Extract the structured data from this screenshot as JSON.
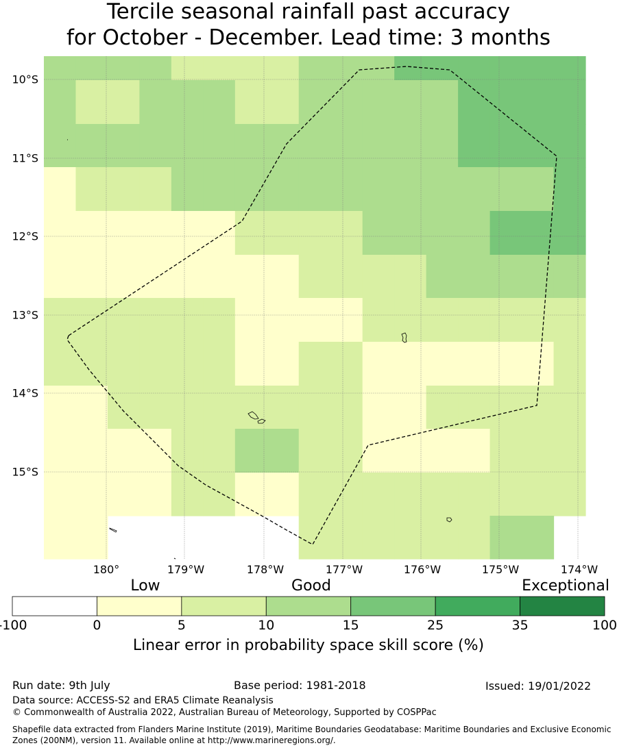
{
  "title": {
    "line1": "Tercile seasonal rainfall past accuracy",
    "line2": "for October - December. Lead time: 3 months"
  },
  "map": {
    "lat_labels": [
      "10°S",
      "11°S",
      "12°S",
      "13°S",
      "14°S",
      "15°S"
    ],
    "lon_labels": [
      "180°",
      "179°W",
      "178°W",
      "177°W",
      "176°W",
      "175°W",
      "174°W"
    ],
    "legend_categories": [
      "Low",
      "Good",
      "Exceptional"
    ],
    "colorbar_ticks": [
      "-100",
      "0",
      "5",
      "10",
      "15",
      "25",
      "35",
      "100"
    ],
    "colorbar_colors": [
      "#ffffff",
      "#ffffcc",
      "#d9f0a3",
      "#addd8e",
      "#78c679",
      "#41ab5d",
      "#238443"
    ],
    "colorbar_title": "Linear error in probability space skill score (%)",
    "grid_class_rows": [
      [
        2,
        2,
        2,
        2,
        1,
        1,
        1,
        1,
        2,
        2,
        2,
        3,
        3,
        3,
        3,
        3,
        3
      ],
      [
        2,
        1,
        1,
        2,
        2,
        2,
        1,
        1,
        2,
        2,
        2,
        2,
        2,
        3,
        3,
        3,
        3
      ],
      [
        2,
        2,
        2,
        2,
        2,
        2,
        2,
        2,
        2,
        2,
        2,
        2,
        2,
        3,
        3,
        3,
        3
      ],
      [
        0,
        1,
        1,
        1,
        2,
        2,
        2,
        2,
        2,
        2,
        2,
        2,
        2,
        2,
        2,
        2,
        3
      ],
      [
        0,
        0,
        0,
        0,
        0,
        0,
        1,
        1,
        1,
        1,
        2,
        2,
        2,
        2,
        3,
        3,
        3
      ],
      [
        0,
        0,
        0,
        0,
        0,
        0,
        0,
        0,
        1,
        1,
        1,
        1,
        2,
        2,
        2,
        2,
        2
      ],
      [
        1,
        1,
        1,
        1,
        1,
        1,
        0,
        0,
        0,
        0,
        1,
        1,
        1,
        1,
        1,
        1,
        1
      ],
      [
        1,
        1,
        1,
        1,
        1,
        1,
        0,
        0,
        1,
        1,
        0,
        0,
        0,
        0,
        0,
        0,
        1
      ],
      [
        0,
        0,
        1,
        1,
        1,
        1,
        1,
        1,
        1,
        1,
        0,
        0,
        1,
        1,
        1,
        1,
        1
      ],
      [
        0,
        0,
        0,
        0,
        1,
        1,
        2,
        2,
        1,
        1,
        0,
        0,
        0,
        0,
        1,
        1,
        1
      ],
      [
        0,
        0,
        0,
        0,
        1,
        1,
        0,
        0,
        1,
        1,
        1,
        1,
        1,
        1,
        1,
        1,
        1
      ],
      [
        0,
        0,
        null,
        null,
        null,
        null,
        null,
        null,
        1,
        1,
        1,
        1,
        1,
        1,
        2,
        2,
        null
      ]
    ],
    "outline_color": "#000000",
    "gridline_color": "#808080"
  },
  "footer": {
    "run_date": "Run date: 9th July",
    "base_period": "Base period: 1981-2018",
    "issued": "Issued: 19/01/2022",
    "data_source": "Data source: ACCESS-S2 and ERA5 Climate Reanalysis",
    "copyright": "© Commonwealth of Australia 2022, Australian Bureau of Meteorology, Supported by COSPPac",
    "shapefile": "Shapefile data extracted from Flanders Marine Institute (2019), Maritime Boundaries Geodatabase: Maritime Boundaries and Exclusive Economic Zones (200NM), version 11. Available online at http://www.marineregions.org/."
  }
}
